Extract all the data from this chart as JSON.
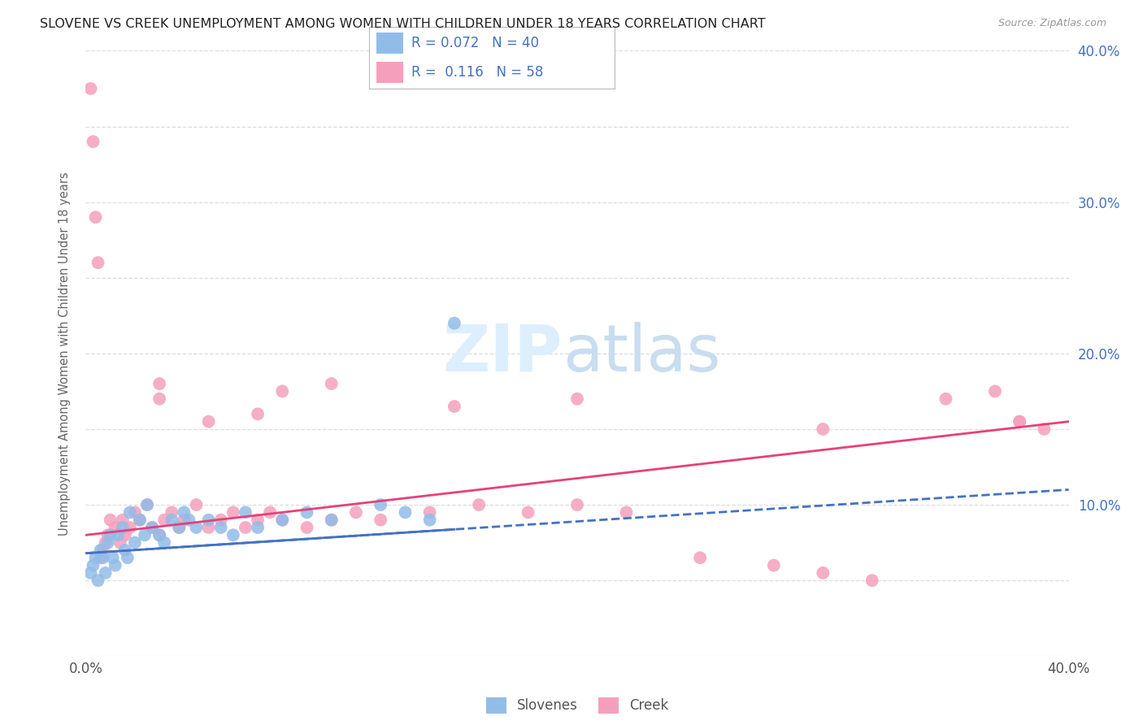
{
  "title": "SLOVENE VS CREEK UNEMPLOYMENT AMONG WOMEN WITH CHILDREN UNDER 18 YEARS CORRELATION CHART",
  "source": "Source: ZipAtlas.com",
  "ylabel": "Unemployment Among Women with Children Under 18 years",
  "xlim": [
    0.0,
    0.4
  ],
  "ylim": [
    0.0,
    0.4
  ],
  "xticks": [
    0.0,
    0.05,
    0.1,
    0.15,
    0.2,
    0.25,
    0.3,
    0.35,
    0.4
  ],
  "yticks": [
    0.0,
    0.05,
    0.1,
    0.15,
    0.2,
    0.25,
    0.3,
    0.35,
    0.4
  ],
  "slovene_color": "#92bce8",
  "creek_color": "#f4a0bc",
  "slovene_line_color": "#4472c4",
  "creek_line_color": "#e8407a",
  "legend_text_color": "#4472c4",
  "right_tick_color": "#4472c4",
  "title_color": "#222222",
  "source_color": "#999999",
  "ylabel_color": "#666666",
  "grid_color": "#dddddd",
  "watermark_zip_color": "#ddeeff",
  "watermark_atlas_color": "#c8ddf0",
  "sl_trend_x0": 0.0,
  "sl_trend_x1": 0.4,
  "sl_trend_y0": 0.068,
  "sl_trend_y1": 0.11,
  "cr_trend_x0": 0.0,
  "cr_trend_x1": 0.4,
  "cr_trend_y0": 0.08,
  "cr_trend_y1": 0.155,
  "slovene_x": [
    0.002,
    0.003,
    0.004,
    0.005,
    0.006,
    0.007,
    0.008,
    0.009,
    0.01,
    0.011,
    0.012,
    0.013,
    0.015,
    0.016,
    0.017,
    0.018,
    0.02,
    0.022,
    0.024,
    0.025,
    0.027,
    0.03,
    0.032,
    0.035,
    0.038,
    0.04,
    0.042,
    0.045,
    0.05,
    0.055,
    0.06,
    0.065,
    0.07,
    0.08,
    0.09,
    0.1,
    0.12,
    0.13,
    0.14,
    0.15
  ],
  "slovene_y": [
    0.055,
    0.06,
    0.065,
    0.05,
    0.07,
    0.065,
    0.055,
    0.075,
    0.08,
    0.065,
    0.06,
    0.08,
    0.085,
    0.07,
    0.065,
    0.095,
    0.075,
    0.09,
    0.08,
    0.1,
    0.085,
    0.08,
    0.075,
    0.09,
    0.085,
    0.095,
    0.09,
    0.085,
    0.09,
    0.085,
    0.08,
    0.095,
    0.085,
    0.09,
    0.095,
    0.09,
    0.1,
    0.095,
    0.09,
    0.22
  ],
  "creek_x": [
    0.002,
    0.003,
    0.004,
    0.005,
    0.006,
    0.007,
    0.008,
    0.009,
    0.01,
    0.012,
    0.014,
    0.015,
    0.016,
    0.018,
    0.02,
    0.022,
    0.025,
    0.027,
    0.03,
    0.032,
    0.035,
    0.038,
    0.04,
    0.045,
    0.05,
    0.055,
    0.06,
    0.065,
    0.07,
    0.075,
    0.08,
    0.09,
    0.1,
    0.11,
    0.12,
    0.14,
    0.16,
    0.18,
    0.2,
    0.22,
    0.25,
    0.28,
    0.3,
    0.32,
    0.35,
    0.37,
    0.38,
    0.39,
    0.03,
    0.05,
    0.07,
    0.1,
    0.15,
    0.2,
    0.3,
    0.38,
    0.03,
    0.08
  ],
  "creek_y": [
    0.375,
    0.34,
    0.29,
    0.26,
    0.065,
    0.07,
    0.075,
    0.08,
    0.09,
    0.085,
    0.075,
    0.09,
    0.08,
    0.085,
    0.095,
    0.09,
    0.1,
    0.085,
    0.08,
    0.09,
    0.095,
    0.085,
    0.09,
    0.1,
    0.085,
    0.09,
    0.095,
    0.085,
    0.09,
    0.095,
    0.09,
    0.085,
    0.09,
    0.095,
    0.09,
    0.095,
    0.1,
    0.095,
    0.1,
    0.095,
    0.065,
    0.06,
    0.055,
    0.05,
    0.17,
    0.175,
    0.155,
    0.15,
    0.17,
    0.155,
    0.16,
    0.18,
    0.165,
    0.17,
    0.15,
    0.155,
    0.18,
    0.175
  ]
}
